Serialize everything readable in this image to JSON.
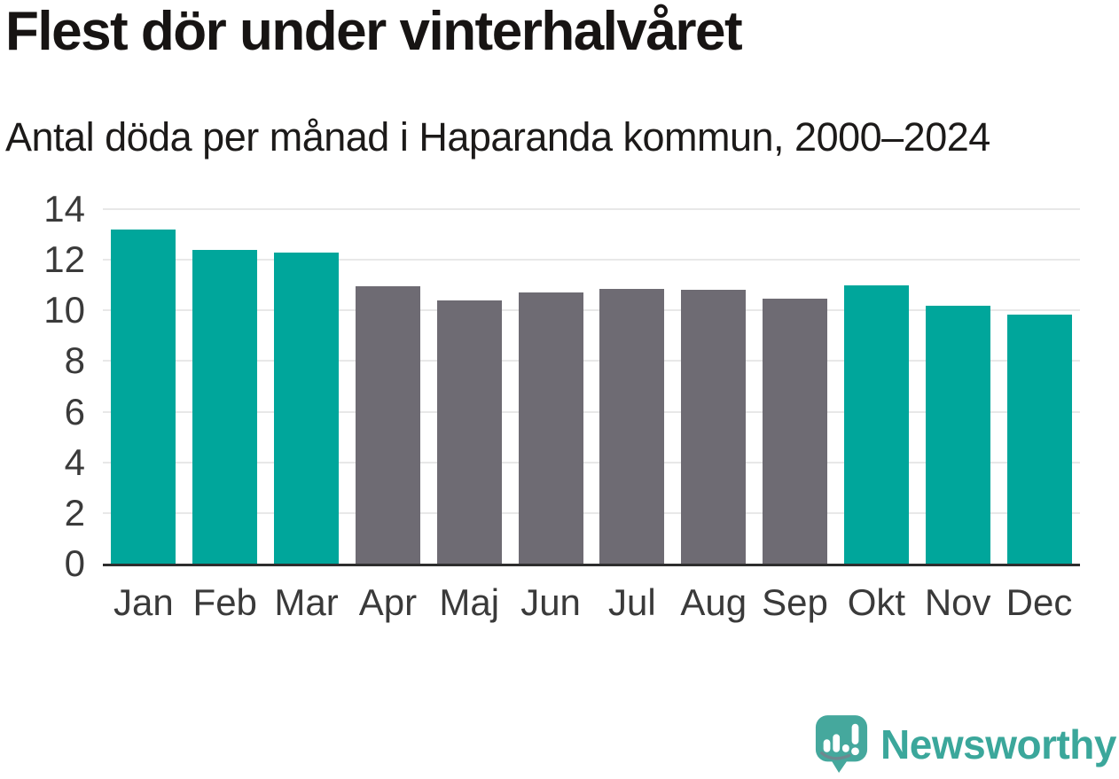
{
  "header": {
    "title": "Flest dör under vinterhalvåret",
    "subtitle": "Antal döda per månad i Haparanda kommun, 2000–2024"
  },
  "chart_data": {
    "type": "bar",
    "title": "Flest dör under vinterhalvåret",
    "subtitle": "Antal döda per månad i Haparanda kommun, 2000–2024",
    "categories": [
      "Jan",
      "Feb",
      "Mar",
      "Apr",
      "Maj",
      "Jun",
      "Jul",
      "Aug",
      "Sep",
      "Okt",
      "Nov",
      "Dec"
    ],
    "values": [
      13.2,
      12.4,
      12.3,
      10.95,
      10.4,
      10.7,
      10.85,
      10.8,
      10.45,
      11.0,
      10.2,
      9.85
    ],
    "bar_groups": [
      "winter",
      "winter",
      "winter",
      "summer",
      "summer",
      "summer",
      "summer",
      "summer",
      "summer",
      "winter",
      "winter",
      "winter"
    ],
    "xlabel": "",
    "ylabel": "",
    "ylim": [
      0,
      14
    ],
    "yticks": [
      0,
      2,
      4,
      6,
      8,
      10,
      12,
      14
    ],
    "grid": true,
    "legend": "none"
  },
  "colors": {
    "winter_bar": "#00a69b",
    "summer_bar": "#6e6b73",
    "gridline": "#e8e8e8",
    "axis_line": "#2e2e2e",
    "tick_label": "#3a3a3a",
    "title_text": "#171413",
    "logo_teal": "#3ba79b",
    "background": "#ffffff"
  },
  "footer": {
    "logo_text": "Newsworthy",
    "logo_icon": "newsworthy-bubble-chart-icon"
  }
}
